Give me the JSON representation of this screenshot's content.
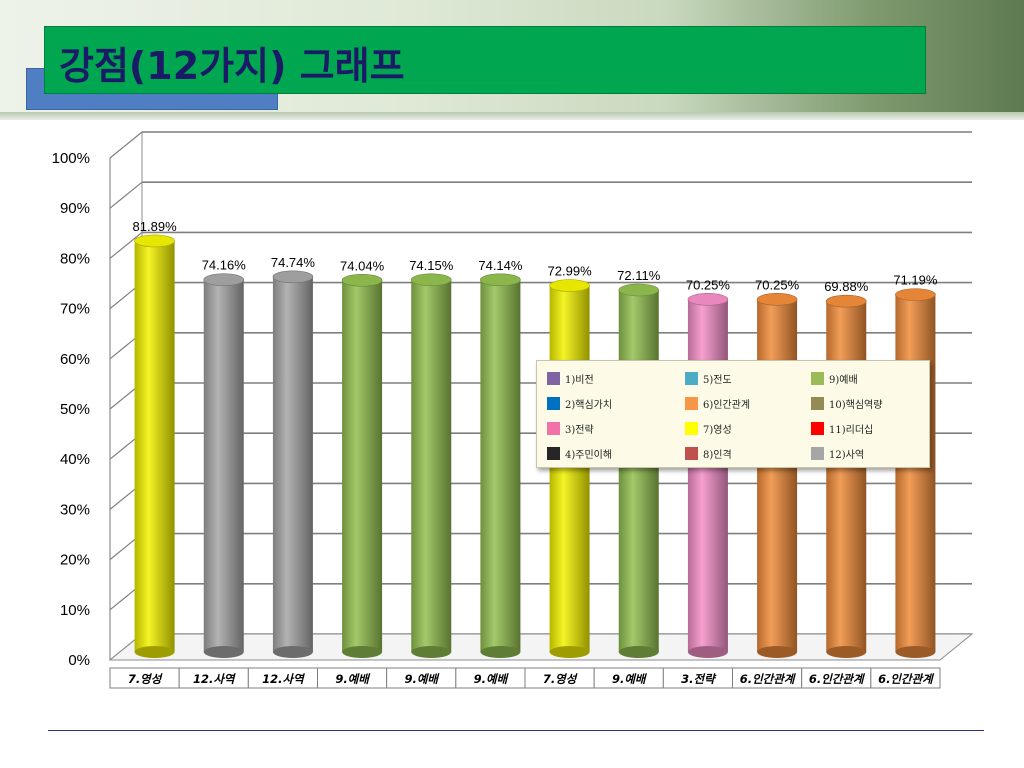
{
  "title": "강점(12가지) 그래프",
  "chart_data": {
    "type": "bar",
    "title": "",
    "xlabel": "",
    "ylabel": "",
    "ylim": [
      0,
      100
    ],
    "yticks": [
      "0%",
      "10%",
      "20%",
      "30%",
      "40%",
      "50%",
      "60%",
      "70%",
      "80%",
      "90%",
      "100%"
    ],
    "grid": true,
    "legend_position": "center-right",
    "categories": [
      "7.영성",
      "12.사역",
      "12.사역",
      "9.예배",
      "9.예배",
      "9.예배",
      "7.영성",
      "9.예배",
      "3.전략",
      "6.인간관계",
      "6.인간관계",
      "6.인간관계"
    ],
    "values": [
      81.89,
      74.16,
      74.74,
      74.04,
      74.15,
      74.14,
      72.99,
      72.11,
      70.25,
      70.25,
      69.88,
      71.19
    ],
    "value_labels": [
      "81.89%",
      "74.16%",
      "74.74%",
      "74.04%",
      "74.15%",
      "74.14%",
      "72.99%",
      "72.11%",
      "70.25%",
      "70.25%",
      "69.88%",
      "71.19%"
    ],
    "bar_colors": [
      "#f2f200",
      "#a6a6a6",
      "#a6a6a6",
      "#92c050",
      "#92c050",
      "#92c050",
      "#f2f200",
      "#92c050",
      "#f48fc8",
      "#f08c3a",
      "#f08c3a",
      "#f08c3a"
    ],
    "legend": [
      {
        "label": "1)비전",
        "color": "#8064a2"
      },
      {
        "label": "5)전도",
        "color": "#4bacc6"
      },
      {
        "label": "9)예배",
        "color": "#9bbb59"
      },
      {
        "label": "2)핵심가치",
        "color": "#0070c0"
      },
      {
        "label": "6)인간관계",
        "color": "#f79646"
      },
      {
        "label": "10)핵심역량",
        "color": "#948a54"
      },
      {
        "label": "3)전략",
        "color": "#f272a8"
      },
      {
        "label": "7)영성",
        "color": "#ffff00"
      },
      {
        "label": "11)리더십",
        "color": "#ff0000"
      },
      {
        "label": "4)주민이해",
        "color": "#262626"
      },
      {
        "label": "8)인격",
        "color": "#c0504d"
      },
      {
        "label": "12)사역",
        "color": "#a6a6a6"
      }
    ]
  }
}
